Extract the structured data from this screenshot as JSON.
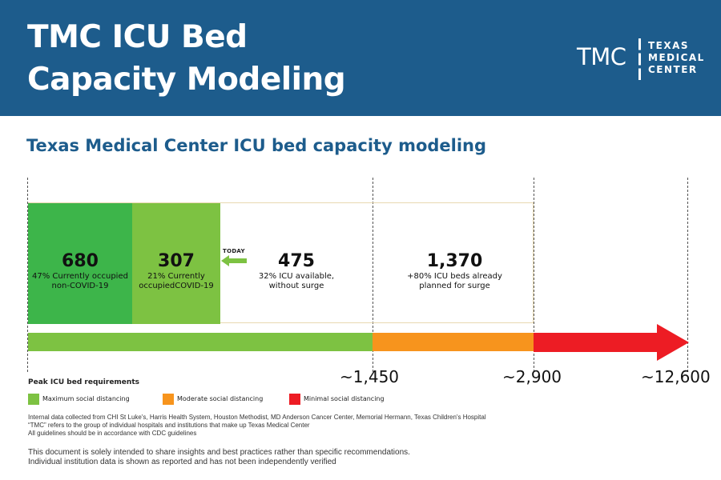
{
  "header": {
    "title_line1": "TMC ICU Bed",
    "title_line2": "Capacity Modeling",
    "logo": {
      "abbr": "TMC",
      "line1": "TEXAS",
      "line2": "MEDICAL",
      "line3": "CENTER"
    }
  },
  "subtitle": "Texas Medical Center ICU bed capacity modeling",
  "segments": [
    {
      "value": "680",
      "line1": "47% Currently occupied",
      "line2": "non-COVID-19",
      "color": "#3db54a"
    },
    {
      "value": "307",
      "line1": "21% Currently",
      "line2": "occupiedCOVID-19",
      "color": "#7dc242"
    },
    {
      "value": "475",
      "line1": "32% ICU available,",
      "line2": "without surge"
    },
    {
      "value": "1,370",
      "line1": "+80% ICU beds already",
      "line2": "planned for surge"
    }
  ],
  "today_label": "TODAY",
  "peak": {
    "label": "Peak ICU bed requirements",
    "ticks": [
      "~1,450",
      "~2,900",
      "~12,600"
    ],
    "bar_colors": {
      "maximum": "#7dc242",
      "moderate": "#f7941d",
      "minimal": "#ed1c24"
    }
  },
  "legend": [
    {
      "label": "Maximum social distancing",
      "color": "#7dc242"
    },
    {
      "label": "Moderate social distancing",
      "color": "#f7941d"
    },
    {
      "label": "Minimal social distancing",
      "color": "#ed1c24"
    }
  ],
  "notes": [
    "Internal data collected from CHI St Luke's, Harris Health System, Houston Methodist, MD Anderson Cancer Center, Memorial Hermann, Texas Children's Hospital",
    "“TMC” refers to the group of individual hospitals and institutions that make up Texas Medical Center",
    "All guidelines should be in accordance with CDC guidelines"
  ],
  "disclaimer": [
    "This document is solely intended to share insights and best practices rather than specific recommendations.",
    "Individual institution data is shown as reported and has not been independently verified"
  ]
}
